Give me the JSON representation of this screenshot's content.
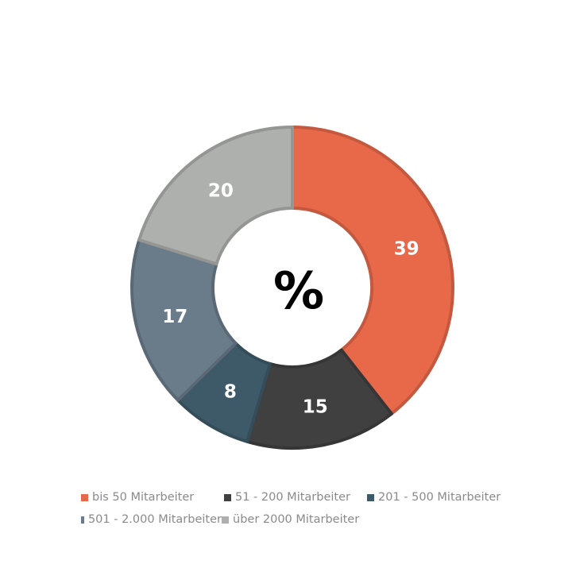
{
  "chart_data": {
    "type": "pie",
    "donut": true,
    "center_label": "%",
    "categories": [
      "bis 50 Mitarbeiter",
      "51 - 200 Mitarbeiter",
      "201 - 500 Mitarbeiter",
      "501 - 2.000 Mitarbeiter",
      "über 2000 Mitarbeiter"
    ],
    "values": [
      39,
      15,
      8,
      17,
      20
    ],
    "colors": [
      "#E8694A",
      "#404040",
      "#3E5A68",
      "#6A7C8A",
      "#AEB0AE"
    ],
    "legend_placement": "bottom"
  }
}
